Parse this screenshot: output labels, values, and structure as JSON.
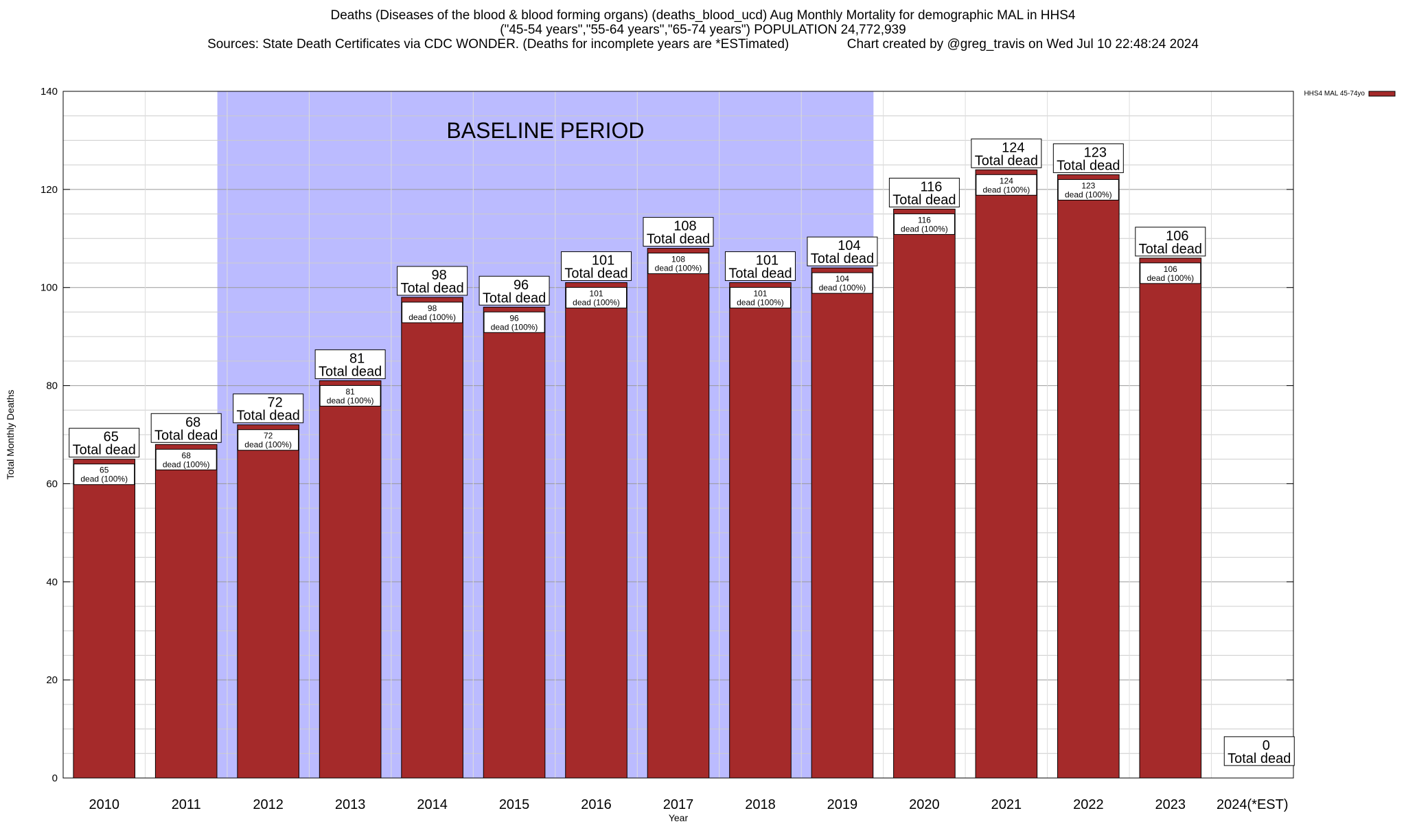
{
  "titles": {
    "line1": "Deaths (Diseases of the blood & blood forming organs) (deaths_blood_ucd) Aug Monthly Mortality for demographic MAL in HHS4",
    "line2": "(\"45-54 years\",\"55-64 years\",\"65-74 years\") POPULATION 24,772,939",
    "line3": "Sources: State Death Certificates via CDC WONDER. (Deaths for incomplete years are *ESTimated)                Chart created by @greg_travis on Wed Jul 10 22:48:24 2024"
  },
  "colors": {
    "bar": "#a52a2a",
    "baseline_band": "#bbbbff",
    "grid": "#b0b0b0"
  },
  "chart_data": {
    "type": "bar",
    "title": "Deaths (Diseases of the blood & blood forming organs) (deaths_blood_ucd) Aug Monthly Mortality for demographic MAL in HHS4",
    "xlabel": "Year",
    "ylabel": "Total Monthly Deaths",
    "ylim": [
      0,
      140
    ],
    "yticks": [
      0,
      20,
      40,
      60,
      80,
      100,
      120,
      140
    ],
    "grid": true,
    "legend": {
      "position": "top-right",
      "entries": [
        "HHS4 MAL 45-74yo"
      ]
    },
    "categories": [
      "2010",
      "2011",
      "2012",
      "2013",
      "2014",
      "2015",
      "2016",
      "2017",
      "2018",
      "2019",
      "2020",
      "2021",
      "2022",
      "2023",
      "2024(*EST)"
    ],
    "series": [
      {
        "name": "HHS4 MAL 45-74yo",
        "values": [
          65,
          68,
          72,
          81,
          98,
          96,
          101,
          108,
          101,
          104,
          116,
          124,
          123,
          106,
          0
        ]
      }
    ],
    "total_label": "Total dead",
    "inner_label": "dead (100%)",
    "baseline": {
      "label": "BASELINE PERIOD",
      "from": "2012",
      "to": "2019"
    }
  }
}
